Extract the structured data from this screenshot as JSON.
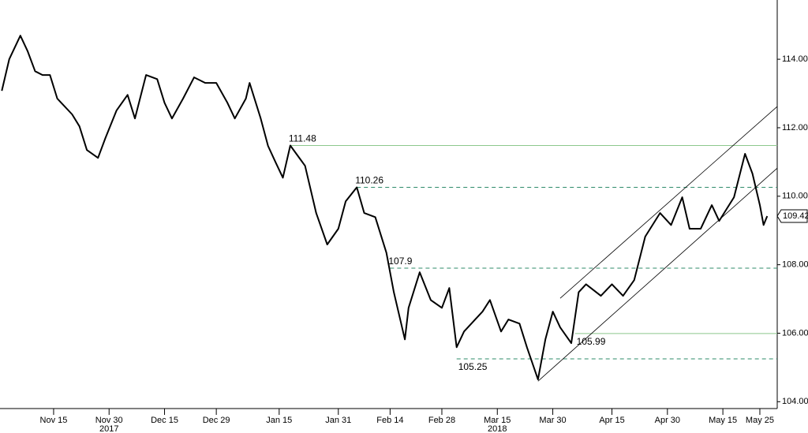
{
  "chart_data": {
    "type": "line",
    "color": "#000000",
    "x": [
      0,
      2,
      5,
      7,
      9,
      11,
      13,
      15,
      19,
      21,
      23,
      26,
      28,
      31,
      34,
      36,
      39,
      42,
      44,
      46,
      49,
      52,
      55,
      58,
      61,
      63,
      66,
      67,
      70,
      72,
      74,
      76,
      78,
      82,
      85,
      88,
      91,
      93,
      96,
      98,
      101,
      104,
      106,
      109,
      110,
      113,
      116,
      119,
      121,
      123,
      125,
      128,
      130,
      132,
      135,
      137,
      140,
      142,
      145,
      147,
      149,
      151,
      154,
      156,
      158,
      162,
      165,
      168,
      171,
      174,
      178,
      181,
      184,
      186,
      189,
      192,
      194,
      198,
      201,
      203,
      205,
      206,
      207
    ],
    "values": [
      113.08,
      114,
      114.69,
      114.23,
      113.65,
      113.54,
      113.54,
      112.85,
      112.39,
      112.04,
      111.35,
      111.12,
      111.7,
      112.5,
      112.96,
      112.27,
      113.54,
      113.42,
      112.73,
      112.27,
      112.85,
      113.47,
      113.31,
      113.31,
      112.73,
      112.27,
      112.85,
      113.31,
      112.27,
      111.47,
      111,
      110.54,
      111.48,
      110.89,
      109.51,
      108.59,
      109.05,
      109.85,
      110.26,
      109.51,
      109.39,
      108.35,
      107.2,
      105.82,
      106.74,
      107.78,
      106.97,
      106.74,
      107.32,
      105.59,
      106.05,
      106.4,
      106.63,
      106.97,
      106.05,
      106.4,
      106.28,
      105.59,
      104.65,
      105.82,
      106.63,
      106.17,
      105.71,
      107.2,
      107.43,
      107.09,
      107.43,
      107.09,
      107.55,
      108.82,
      109.51,
      109.16,
      109.97,
      109.05,
      109.05,
      109.74,
      109.28,
      109.97,
      111.24,
      110.66,
      109.74,
      109.16,
      109.42
    ],
    "last_value": 109.42,
    "levels": [
      {
        "value": 111.48,
        "x": 78,
        "style": "solid",
        "color": "#8cc88c"
      },
      {
        "value": 110.26,
        "x": 96,
        "style": "dashed",
        "color": "#2e8b6a"
      },
      {
        "value": 107.9,
        "x": 105,
        "style": "dashed",
        "color": "#2e8b6a"
      },
      {
        "value": 105.99,
        "x": 155,
        "style": "solid",
        "color": "#8cc88c"
      },
      {
        "value": 105.25,
        "x": 123,
        "style": "dashed",
        "color": "#2e8b6a"
      }
    ],
    "channel": [
      {
        "x": [
          151,
          209.7
        ],
        "values": [
          107.02,
          112.62
        ]
      },
      {
        "x": [
          145,
          209.7
        ],
        "values": [
          104.6,
          110.82
        ]
      }
    ],
    "xlim": [
      -0.5,
      209.7
    ],
    "ylim": [
      103.8,
      115.73
    ],
    "xticks": [
      {
        "value": 14,
        "label": "Nov 15"
      },
      {
        "value": 29,
        "label": "Nov 30"
      },
      {
        "value": 44,
        "label": "Dec 15"
      },
      {
        "value": 58,
        "label": "Dec 29"
      },
      {
        "value": 75,
        "label": "Jan 15"
      },
      {
        "value": 91,
        "label": "Jan 31"
      },
      {
        "value": 105,
        "label": "Feb 14"
      },
      {
        "value": 119,
        "label": "Feb 28"
      },
      {
        "value": 134,
        "label": "Mar 15"
      },
      {
        "value": 149,
        "label": "Mar 30"
      },
      {
        "value": 165,
        "label": "Apr 15"
      },
      {
        "value": 180,
        "label": "Apr 30"
      },
      {
        "value": 195,
        "label": "May 15"
      },
      {
        "value": 205,
        "label": "May 25"
      }
    ],
    "year_labels": [
      {
        "value": 29,
        "label": "2017"
      },
      {
        "value": 134,
        "label": "2018"
      }
    ],
    "yticks": [
      {
        "value": 104,
        "label": "104.00"
      },
      {
        "value": 106,
        "label": "106.00"
      },
      {
        "value": 108,
        "label": "108.00"
      },
      {
        "value": 110,
        "label": "110.00"
      },
      {
        "value": 112,
        "label": "112.00"
      },
      {
        "value": 114,
        "label": "114.00"
      }
    ]
  }
}
